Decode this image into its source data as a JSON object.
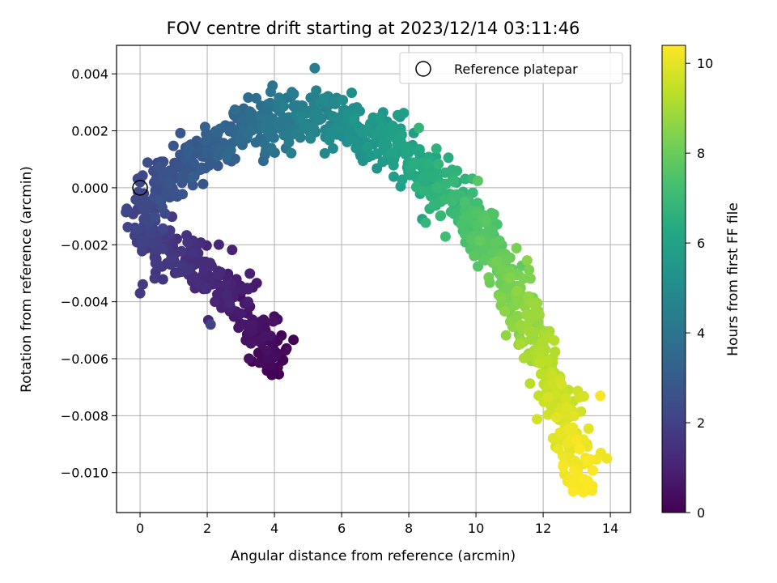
{
  "chart_data": {
    "type": "scatter",
    "title": "FOV centre drift starting at 2023/12/14 03:11:46",
    "xlabel": "Angular distance from reference (arcmin)",
    "ylabel": "Rotation from reference (arcmin)",
    "xlim": [
      -0.7,
      14.6
    ],
    "ylim": [
      -0.0114,
      0.005
    ],
    "x_ticks": [
      0,
      2,
      4,
      6,
      8,
      10,
      12,
      14
    ],
    "x_tick_labels": [
      "0",
      "2",
      "4",
      "6",
      "8",
      "10",
      "12",
      "14"
    ],
    "y_ticks": [
      0.004,
      0.002,
      0.0,
      -0.002,
      -0.004,
      -0.006,
      -0.008,
      -0.01
    ],
    "y_tick_labels": [
      "0.004",
      "0.002",
      "0.000",
      "−0.002",
      "−0.004",
      "−0.006",
      "−0.008",
      "−0.010"
    ],
    "grid": true,
    "legend": {
      "placement": "top-right",
      "entries": [
        {
          "label": "Reference platepar",
          "marker": "open-circle"
        }
      ]
    },
    "colorbar": {
      "label": "Hours from first FF file",
      "range": [
        0,
        10.4
      ],
      "ticks": [
        0,
        2,
        4,
        6,
        8,
        10
      ],
      "tick_labels": [
        "0",
        "2",
        "4",
        "6",
        "8",
        "10"
      ],
      "colormap": "viridis"
    },
    "reference_point": {
      "x": 0,
      "y": 0.0
    },
    "trajectory": [
      {
        "h": 0.0,
        "x": 4.1,
        "y": -0.0062
      },
      {
        "h": 0.5,
        "x": 3.5,
        "y": -0.005
      },
      {
        "h": 1.0,
        "x": 2.5,
        "y": -0.0035
      },
      {
        "h": 1.4,
        "x": 1.5,
        "y": -0.0025
      },
      {
        "h": 1.8,
        "x": 0.4,
        "y": -0.0022
      },
      {
        "h": 2.2,
        "x": 0.1,
        "y": -0.0006
      },
      {
        "h": 2.6,
        "x": 0.9,
        "y": 0.0004
      },
      {
        "h": 3.0,
        "x": 2.0,
        "y": 0.0012
      },
      {
        "h": 3.5,
        "x": 3.0,
        "y": 0.002
      },
      {
        "h": 4.0,
        "x": 4.0,
        "y": 0.0025
      },
      {
        "h": 4.5,
        "x": 5.0,
        "y": 0.0026
      },
      {
        "h": 5.0,
        "x": 6.0,
        "y": 0.0022
      },
      {
        "h": 5.5,
        "x": 7.0,
        "y": 0.0017
      },
      {
        "h": 6.0,
        "x": 8.0,
        "y": 0.0011
      },
      {
        "h": 6.5,
        "x": 8.8,
        "y": 0.0003
      },
      {
        "h": 7.0,
        "x": 9.5,
        "y": -0.0007
      },
      {
        "h": 7.5,
        "x": 10.2,
        "y": -0.0017
      },
      {
        "h": 8.0,
        "x": 10.8,
        "y": -0.0028
      },
      {
        "h": 8.5,
        "x": 11.3,
        "y": -0.004
      },
      {
        "h": 9.0,
        "x": 11.8,
        "y": -0.0054
      },
      {
        "h": 9.5,
        "x": 12.4,
        "y": -0.007
      },
      {
        "h": 10.0,
        "x": 12.8,
        "y": -0.0088
      },
      {
        "h": 10.4,
        "x": 13.1,
        "y": -0.0102
      }
    ],
    "outliers": [
      {
        "h": 10.3,
        "x": 13.7,
        "y": -0.0073
      },
      {
        "h": 4.4,
        "x": 5.2,
        "y": 0.0042
      },
      {
        "h": 1.8,
        "x": 0.0,
        "y": -0.0037
      },
      {
        "h": 0.1,
        "x": 4.1,
        "y": -0.0063
      },
      {
        "h": 2.0,
        "x": 2.1,
        "y": -0.0048
      },
      {
        "h": 10.1,
        "x": 13.9,
        "y": -0.0095
      },
      {
        "h": 6.8,
        "x": 8.3,
        "y": 0.0021
      },
      {
        "h": 6.1,
        "x": 8.4,
        "y": -0.0011
      }
    ],
    "scatter_seed": 7,
    "points_per_segment": 55
  }
}
